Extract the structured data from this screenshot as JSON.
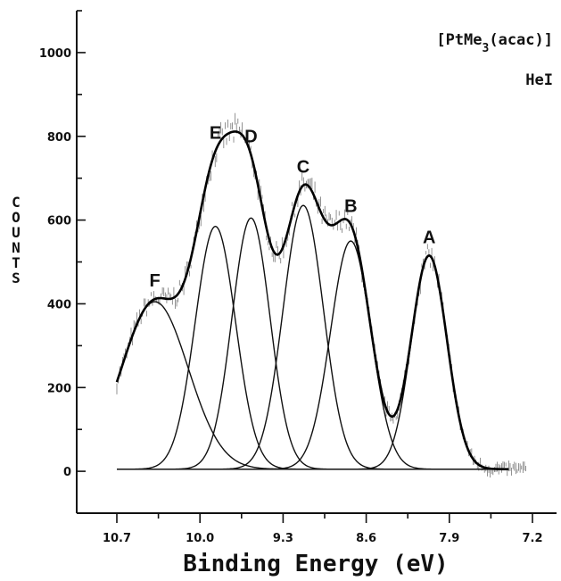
{
  "chart_data": {
    "type": "line",
    "title": "",
    "annotation_lines": [
      "[PtMe3(acac)]",
      "HeI"
    ],
    "xlabel": "Binding Energy (eV)",
    "ylabel": "COUNTS",
    "x_reversed": true,
    "xlim": [
      10.7,
      7.2
    ],
    "ylim": [
      -100,
      1100
    ],
    "x_ticks": [
      "10.7",
      "10.0",
      "9.3",
      "8.6",
      "7.9",
      "7.2"
    ],
    "y_ticks": [
      "0",
      "200",
      "400",
      "600",
      "800",
      "1000"
    ],
    "grid": false,
    "legend": "none",
    "peaks": [
      {
        "label": "A",
        "center": 8.07,
        "amplitude": 510,
        "sigma": 0.15
      },
      {
        "label": "B",
        "center": 8.73,
        "amplitude": 545,
        "sigma": 0.17
      },
      {
        "label": "C",
        "center": 9.13,
        "amplitude": 630,
        "sigma": 0.17
      },
      {
        "label": "D",
        "center": 9.57,
        "amplitude": 600,
        "sigma": 0.16
      },
      {
        "label": "E",
        "center": 9.87,
        "amplitude": 580,
        "sigma": 0.17
      },
      {
        "label": "F",
        "center": 10.38,
        "amplitude": 400,
        "sigma": 0.28
      }
    ],
    "baseline": 5,
    "envelope_x_range": [
      10.7,
      7.4
    ]
  }
}
